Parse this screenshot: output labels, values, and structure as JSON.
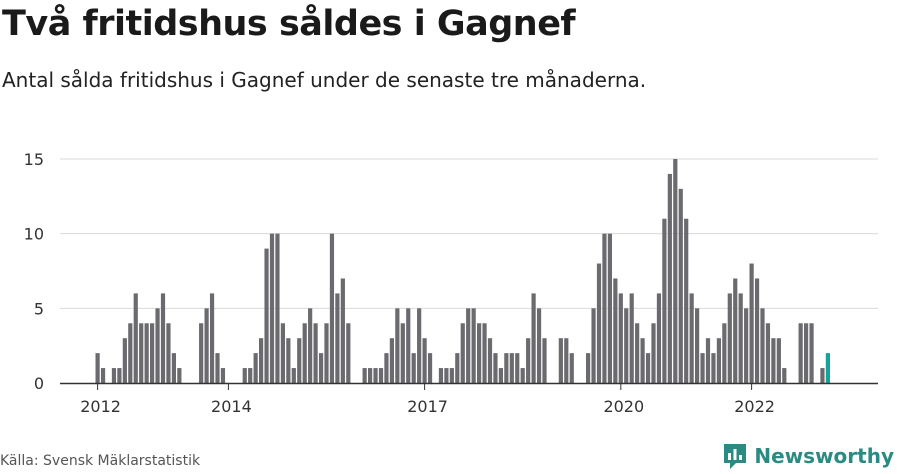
{
  "header": {
    "title": "Två fritidshus såldes i Gagnef",
    "subtitle": "Antal sålda fritidshus i Gagnef under de senaste tre månaderna."
  },
  "footer": {
    "source": "Källa: Svensk Mäklarstatistik",
    "brand": "Newsworthy"
  },
  "colors": {
    "bar": "#6b6a6e",
    "highlight": "#14a49a",
    "grid": "#d9d9d9",
    "axis": "#333333",
    "brand": "#2a8b82"
  },
  "chart_data": {
    "type": "bar",
    "title": "Två fritidshus såldes i Gagnef",
    "subtitle": "Antal sålda fritidshus i Gagnef under de senaste tre månaderna.",
    "ylim": [
      0,
      15
    ],
    "y_ticks": [
      0,
      5,
      10,
      15
    ],
    "x_ticks": [
      {
        "label": "2012",
        "index": 0
      },
      {
        "label": "2014",
        "index": 24
      },
      {
        "label": "2017",
        "index": 60
      },
      {
        "label": "2020",
        "index": 96
      },
      {
        "label": "2022",
        "index": 120
      }
    ],
    "grid": true,
    "values": [
      2,
      1,
      0,
      1,
      1,
      3,
      4,
      6,
      4,
      4,
      4,
      5,
      6,
      4,
      2,
      1,
      0,
      0,
      0,
      4,
      5,
      6,
      2,
      1,
      0,
      0,
      0,
      1,
      1,
      2,
      3,
      9,
      10,
      10,
      4,
      3,
      1,
      3,
      4,
      5,
      4,
      2,
      4,
      10,
      6,
      7,
      4,
      0,
      0,
      1,
      1,
      1,
      1,
      2,
      3,
      5,
      4,
      5,
      2,
      5,
      3,
      2,
      0,
      1,
      1,
      1,
      2,
      4,
      5,
      5,
      4,
      4,
      3,
      2,
      1,
      2,
      2,
      2,
      1,
      3,
      6,
      5,
      3,
      0,
      0,
      3,
      3,
      2,
      0,
      0,
      2,
      5,
      8,
      10,
      10,
      7,
      6,
      5,
      6,
      4,
      3,
      2,
      4,
      6,
      11,
      14,
      15,
      13,
      11,
      6,
      5,
      2,
      3,
      2,
      3,
      4,
      6,
      7,
      6,
      5,
      8,
      7,
      5,
      4,
      3,
      3,
      1,
      0,
      0,
      4,
      4,
      4,
      0,
      1,
      2
    ],
    "highlight_last": true,
    "annotation": {
      "index": 135,
      "label": "2"
    }
  }
}
